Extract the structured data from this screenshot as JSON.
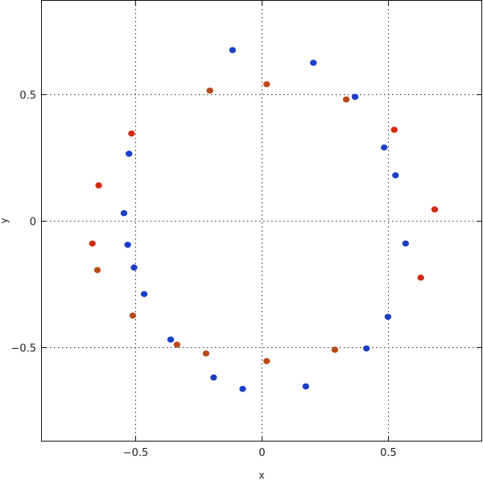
{
  "chart_data": {
    "type": "scatter",
    "title": "",
    "xlabel": "x",
    "ylabel": "y",
    "xlim": [
      -0.87,
      0.87
    ],
    "ylim": [
      -0.87,
      0.87
    ],
    "x_ticks": [
      -0.5,
      0,
      0.5
    ],
    "y_ticks": [
      -0.5,
      0,
      0.5
    ],
    "x_tick_labels": [
      "−0.5",
      "0",
      "0.5"
    ],
    "y_tick_labels": [
      "−0.5",
      "0",
      "0.5"
    ],
    "grid": true,
    "series": [
      {
        "color": "#1a3fc4",
        "points": [
          [
            -0.115,
            0.675
          ],
          [
            0.205,
            0.625
          ],
          [
            0.37,
            0.49
          ],
          [
            0.485,
            0.29
          ],
          [
            0.53,
            0.18
          ],
          [
            0.57,
            -0.09
          ],
          [
            0.5,
            -0.38
          ],
          [
            0.415,
            -0.505
          ],
          [
            0.175,
            -0.655
          ],
          [
            -0.075,
            -0.665
          ],
          [
            -0.19,
            -0.62
          ],
          [
            -0.36,
            -0.47
          ],
          [
            -0.465,
            -0.29
          ],
          [
            -0.505,
            -0.185
          ],
          [
            -0.53,
            -0.095
          ],
          [
            -0.545,
            0.03
          ],
          [
            -0.525,
            0.265
          ]
        ]
      },
      {
        "color": "#b84a1a",
        "points": [
          [
            -0.205,
            0.515
          ],
          [
            0.02,
            0.54
          ],
          [
            0.335,
            0.48
          ],
          [
            0.29,
            -0.51
          ],
          [
            0.02,
            -0.555
          ],
          [
            -0.22,
            -0.525
          ],
          [
            -0.335,
            -0.49
          ],
          [
            -0.51,
            -0.375
          ],
          [
            -0.65,
            -0.195
          ]
        ]
      },
      {
        "color": "#d42a12",
        "points": [
          [
            0.525,
            0.36
          ],
          [
            0.685,
            0.045
          ],
          [
            0.63,
            -0.225
          ],
          [
            -0.515,
            0.345
          ],
          [
            -0.645,
            0.14
          ],
          [
            -0.67,
            -0.09
          ]
        ]
      }
    ]
  }
}
